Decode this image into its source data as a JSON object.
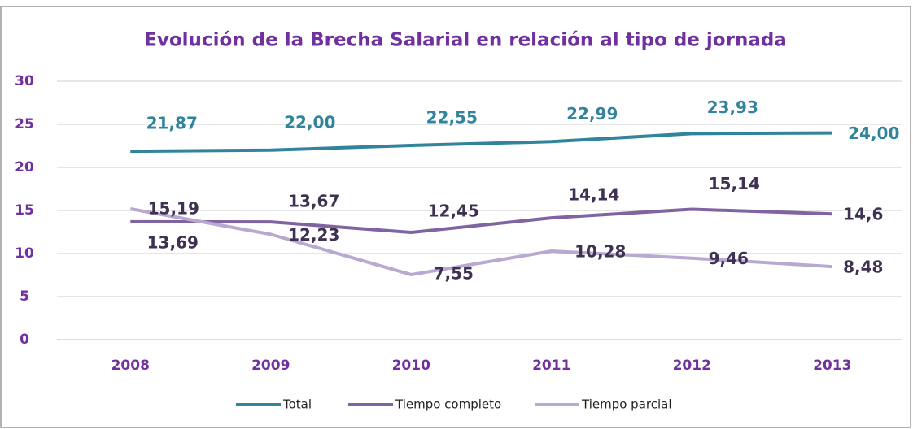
{
  "chart_data": {
    "type": "line",
    "title": "Evolución de la Brecha Salarial en relación al tipo de jornada",
    "categories": [
      "2008",
      "2009",
      "2010",
      "2011",
      "2012",
      "2013"
    ],
    "series": [
      {
        "name": "Total",
        "color": "#31849b",
        "label_color": "#31849b",
        "values": [
          21.87,
          22.0,
          22.55,
          22.99,
          23.93,
          24.0
        ],
        "value_labels": [
          "21,87",
          "22,00",
          "22,55",
          "22,99",
          "23,93",
          "24,00"
        ]
      },
      {
        "name": "Tiempo completo",
        "color": "#8064a2",
        "label_color": "#3f3151",
        "values": [
          13.69,
          13.67,
          12.45,
          14.14,
          15.14,
          14.6
        ],
        "value_labels": [
          "13,69",
          "13,67",
          "12,45",
          "14,14",
          "15,14",
          "14,6"
        ]
      },
      {
        "name": "Tiempo parcial",
        "color": "#b8a9d0",
        "label_color": "#3f3151",
        "values": [
          15.19,
          12.23,
          7.55,
          10.28,
          9.46,
          8.48
        ],
        "value_labels": [
          "15,19",
          "12,23",
          "7,55",
          "10,28",
          "9,46",
          "8,48"
        ]
      }
    ],
    "ylim": [
      0,
      30
    ],
    "yticks": [
      0,
      5,
      10,
      15,
      20,
      25,
      30
    ],
    "grid": true,
    "legend": "bottom"
  }
}
